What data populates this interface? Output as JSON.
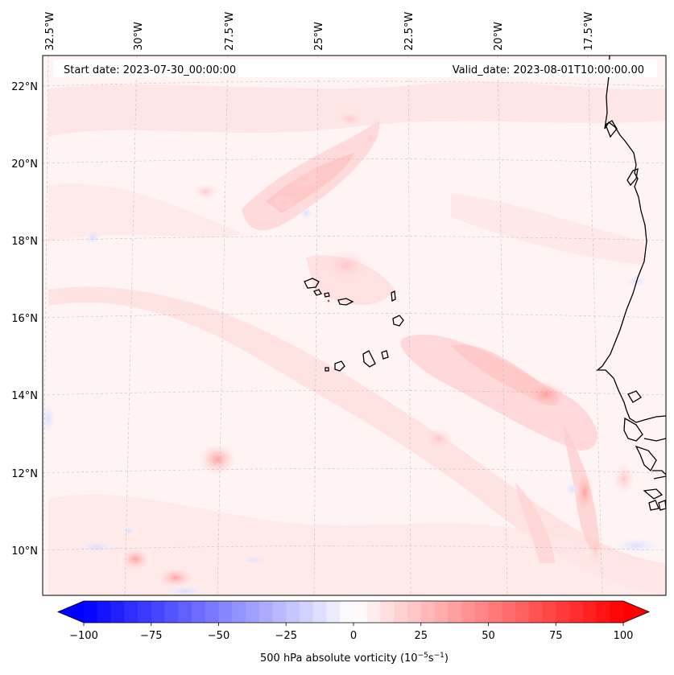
{
  "map": {
    "start_label": "Start date: 2023-07-30_00:00:00",
    "valid_label": "Valid_date: 2023-08-01T10:00:00.00",
    "lon_labels": [
      "32.5°W",
      "30°W",
      "27.5°W",
      "25°W",
      "22.5°W",
      "20°W",
      "17.5°W"
    ],
    "lat_labels": [
      "22°N",
      "20°N",
      "18°N",
      "16°N",
      "14°N",
      "12°N",
      "10°N"
    ],
    "region": "Cape Verde Islands and West African coast",
    "field": "500 hPa absolute vorticity"
  },
  "colorbar": {
    "label": "500 hPa absolute vorticity (10",
    "label_exp1": "−5",
    "label_mid": "s",
    "label_exp2": "−1",
    "label_end": ")",
    "ticks": [
      "−100",
      "−75",
      "−50",
      "−25",
      "0",
      "25",
      "50",
      "75",
      "100"
    ],
    "min": -100,
    "max": 100,
    "colors": {
      "neg": "#0000ff",
      "mid": "#ffffff",
      "pos": "#ff0000"
    }
  }
}
